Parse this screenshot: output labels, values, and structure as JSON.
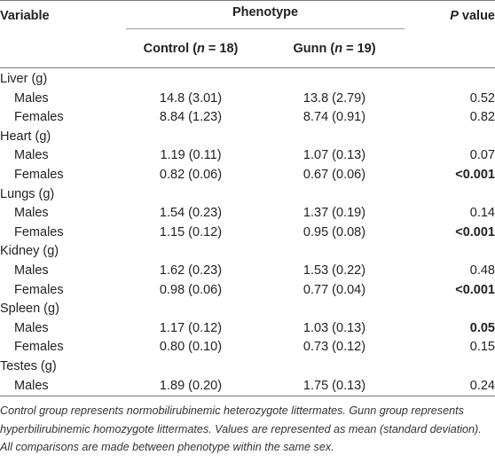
{
  "header": {
    "variable": "Variable",
    "phenotype": "Phenotype",
    "p_value_p": "P",
    "p_value_rest": " value",
    "control_pre": "Control (",
    "control_n": "n",
    "control_post": " = 18)",
    "gunn_pre": "Gunn (",
    "gunn_n": "n",
    "gunn_post": " = 19)"
  },
  "rows": [
    {
      "kind": "group",
      "variable": "Liver (g)"
    },
    {
      "kind": "sub",
      "variable": "Males",
      "control": "14.8 (3.01)",
      "gunn": "13.8 (2.79)",
      "p": "0.52",
      "p_bold": false
    },
    {
      "kind": "sub",
      "variable": "Females",
      "control": "8.84 (1.23)",
      "gunn": "8.74 (0.91)",
      "p": "0.82",
      "p_bold": false
    },
    {
      "kind": "group",
      "variable": "Heart (g)"
    },
    {
      "kind": "sub",
      "variable": "Males",
      "control": "1.19 (0.11)",
      "gunn": "1.07 (0.13)",
      "p": "0.07",
      "p_bold": false
    },
    {
      "kind": "sub",
      "variable": "Females",
      "control": "0.82 (0.06)",
      "gunn": "0.67 (0.06)",
      "p": "<0.001",
      "p_bold": true
    },
    {
      "kind": "group",
      "variable": "Lungs (g)"
    },
    {
      "kind": "sub",
      "variable": "Males",
      "control": "1.54 (0.23)",
      "gunn": "1.37 (0.19)",
      "p": "0.14",
      "p_bold": false
    },
    {
      "kind": "sub",
      "variable": "Females",
      "control": "1.15 (0.12)",
      "gunn": "0.95 (0.08)",
      "p": "<0.001",
      "p_bold": true
    },
    {
      "kind": "group",
      "variable": "Kidney (g)"
    },
    {
      "kind": "sub",
      "variable": "Males",
      "control": "1.62 (0.23)",
      "gunn": "1.53 (0.22)",
      "p": "0.48",
      "p_bold": false
    },
    {
      "kind": "sub",
      "variable": "Females",
      "control": "0.98 (0.06)",
      "gunn": "0.77 (0.04)",
      "p": "<0.001",
      "p_bold": true
    },
    {
      "kind": "group",
      "variable": "Spleen (g)"
    },
    {
      "kind": "sub",
      "variable": "Males",
      "control": "1.17 (0.12)",
      "gunn": "1.03 (0.13)",
      "p": "0.05",
      "p_bold": true
    },
    {
      "kind": "sub",
      "variable": "Females",
      "control": "0.80 (0.10)",
      "gunn": "0.73 (0.12)",
      "p": "0.15",
      "p_bold": false
    },
    {
      "kind": "group",
      "variable": "Testes (g)"
    },
    {
      "kind": "sub",
      "variable": "Males",
      "control": "1.89 (0.20)",
      "gunn": "1.75 (0.13)",
      "p": "0.24",
      "p_bold": false
    }
  ],
  "footnote": "Control group represents normobilirubinemic heterozygote littermates. Gunn group represents hyperbilirubinemic homozygote littermates. Values are represented as mean (standard deviation). All comparisons are made between phenotype within the same sex."
}
